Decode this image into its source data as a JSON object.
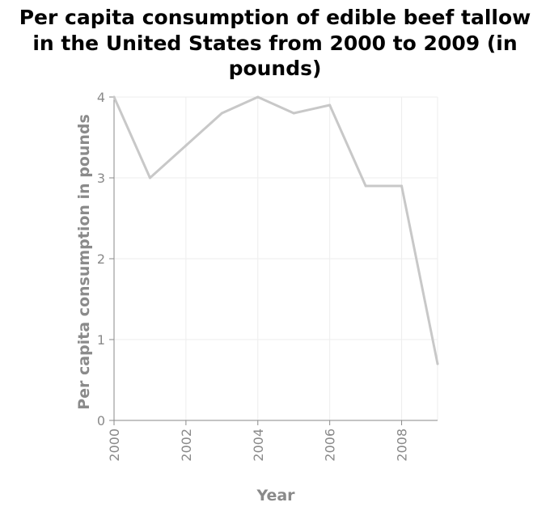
{
  "chart_data": {
    "type": "line",
    "title_lines": [
      "Per capita consumption of edible beef tallow",
      "in the United States from 2000 to 2009 (in",
      "pounds)"
    ],
    "xlabel": "Year",
    "ylabel": "Per capita consumption in pounds",
    "x": [
      2000,
      2001,
      2002,
      2003,
      2004,
      2005,
      2006,
      2007,
      2008,
      2009
    ],
    "series": [
      {
        "values": [
          4.0,
          3.0,
          3.4,
          3.8,
          4.0,
          3.8,
          3.9,
          2.9,
          2.9,
          0.7
        ]
      }
    ],
    "xlim": [
      2000,
      2009
    ],
    "ylim": [
      0,
      4
    ],
    "xticks": [
      "2000",
      "2002",
      "2004",
      "2006",
      "2008"
    ],
    "yticks": [
      "0",
      "1",
      "2",
      "3",
      "4"
    ],
    "grid": true,
    "line_color": "#c8c8c8",
    "grid_color": "#eeeeee",
    "axis_color": "#8a8a8a"
  }
}
